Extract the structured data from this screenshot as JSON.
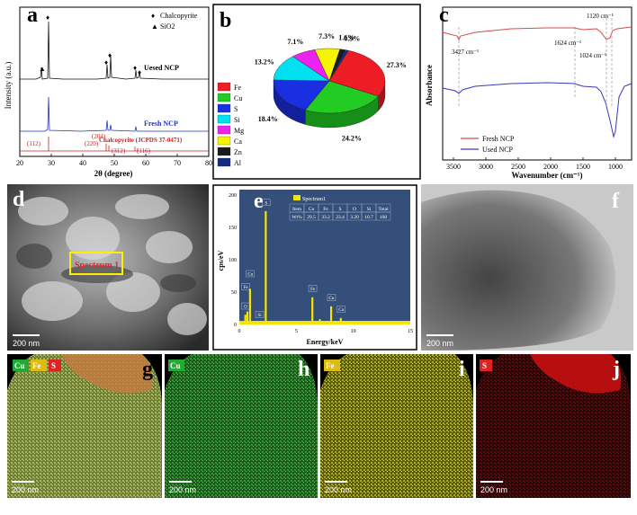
{
  "panels": {
    "a": {
      "label": "a",
      "ylabel": "Intensity (a.u.)",
      "xlabel": "2θ (degree)",
      "xticks": [
        "20",
        "30",
        "40",
        "50",
        "60",
        "70",
        "80"
      ],
      "legend": [
        {
          "marker": "♦",
          "text": "Chalcopyrite"
        },
        {
          "marker": "▲",
          "text": "SiO2"
        }
      ],
      "used_label": "Uesed NCP",
      "fresh_label": "Fresh NCP",
      "ref_label": "Chalcopyrite (JCPDS 37-0471)",
      "peaks": [
        "(112)",
        "(220)",
        "(204)",
        "(312)",
        "(116)"
      ]
    },
    "b": {
      "label": "b",
      "legend": [
        "Fe",
        "Cu",
        "S",
        "Si",
        "Mg",
        "Ca",
        "Zn",
        "Al"
      ],
      "colors": [
        "#ee1c25",
        "#22cc22",
        "#1a2fe0",
        "#00e0f0",
        "#ee22ee",
        "#f5f500",
        "#1a1a1a",
        "#152c80"
      ]
    },
    "c": {
      "label": "c",
      "ylabel": "Absorbance",
      "xlabel": "Wavenumber (cm⁻¹)",
      "xticks": [
        "3500",
        "3000",
        "2500",
        "2000",
        "1500",
        "1000"
      ],
      "ann": [
        "3427 cm⁻¹",
        "1624 cm⁻¹",
        "1120 cm⁻¹",
        "1024 cm⁻¹"
      ],
      "legend": [
        {
          "text": "Fresh NCP",
          "color": "#d94a4a"
        },
        {
          "text": "Used NCP",
          "color": "#3a3ab8"
        }
      ]
    },
    "d": {
      "label": "d",
      "box_label": "Spectrum 1",
      "scale": "200 nm"
    },
    "e": {
      "label": "e",
      "ylabel": "cps/eV",
      "xlabel": "Energy/keV",
      "yticks": [
        "0",
        "50",
        "100",
        "150",
        "200"
      ],
      "xticks": [
        "0",
        "5",
        "10",
        "15"
      ],
      "legend": "Spectrum1",
      "table_header": [
        "Item",
        "Cu",
        "Fe",
        "S",
        "O",
        "Si",
        "Total"
      ],
      "table_row": [
        "Wt%",
        "29.5",
        "33.2",
        "23.4",
        "3.20",
        "10.7",
        "100"
      ],
      "peak_labels": [
        "Fe",
        "Cu",
        "S",
        "O",
        "Si",
        "Fe",
        "Cu",
        "Cu"
      ]
    },
    "f": {
      "label": "f",
      "scale": "200 nm"
    },
    "g": {
      "label": "g",
      "tags": [
        "Cu",
        "Fe",
        "S"
      ],
      "scale": "200 nm"
    },
    "h": {
      "label": "h",
      "tag": "Cu",
      "scale": "200 nm"
    },
    "i": {
      "label": "i",
      "tag": "Fe",
      "scale": "200 nm"
    },
    "j": {
      "label": "j",
      "tag": "S",
      "scale": "200 nm"
    }
  },
  "chart_data": [
    {
      "panel": "a",
      "type": "line",
      "title": "",
      "xlabel": "2θ (degree)",
      "ylabel": "Intensity (a.u.)",
      "xlim": [
        20,
        80
      ],
      "series": [
        {
          "name": "Uesed NCP",
          "x": [
            26.6,
            29.4,
            48.9,
            49.6,
            58.2,
            59.3
          ],
          "y": [
            0.12,
            1.0,
            0.15,
            0.25,
            0.12,
            0.1
          ]
        },
        {
          "name": "Fresh NCP",
          "x": [
            29.4,
            48.9,
            49.6,
            58.2
          ],
          "y": [
            0.55,
            0.12,
            0.08,
            0.06
          ]
        },
        {
          "name": "Chalcopyrite (JCPDS 37-0471)",
          "x": [
            29.4,
            48.9,
            49.6,
            58.2,
            59.3
          ],
          "y": [
            1,
            0.3,
            0.2,
            0.15,
            0.1
          ]
        }
      ]
    },
    {
      "panel": "b",
      "type": "pie",
      "title": "",
      "categories": [
        "Fe",
        "Cu",
        "S",
        "Si",
        "Mg",
        "Ca",
        "Zn",
        "Al"
      ],
      "values": [
        27.3,
        24.2,
        18.4,
        13.2,
        7.1,
        7.3,
        1.6,
        0.9
      ],
      "labels": [
        "27.3%",
        "24.2%",
        "18.4%",
        "13.2%",
        "7.1%",
        "7.3%",
        "1.6%",
        "0.9%"
      ]
    },
    {
      "panel": "c",
      "type": "line",
      "title": "",
      "xlabel": "Wavenumber (cm⁻¹)",
      "ylabel": "Absorbance",
      "xlim": [
        3700,
        800
      ],
      "series": [
        {
          "name": "Fresh NCP",
          "x": [
            3700,
            3427,
            3300,
            2500,
            1624,
            1200,
            1120,
            1024,
            900
          ],
          "y": [
            0.92,
            0.86,
            0.9,
            0.92,
            0.9,
            0.87,
            0.8,
            0.82,
            0.92
          ]
        },
        {
          "name": "Used NCP",
          "x": [
            3700,
            3427,
            3300,
            2500,
            1624,
            1200,
            1120,
            1024,
            900
          ],
          "y": [
            0.45,
            0.38,
            0.44,
            0.45,
            0.43,
            0.3,
            0.12,
            0.02,
            0.4
          ]
        }
      ]
    },
    {
      "panel": "e",
      "type": "bar",
      "title": "",
      "xlabel": "Energy/keV",
      "ylabel": "cps/eV",
      "xlim": [
        0,
        15
      ],
      "ylim": [
        0,
        200
      ],
      "x": [
        0.52,
        0.7,
        0.93,
        1.74,
        2.31,
        6.4,
        7.06,
        8.05,
        8.9
      ],
      "values": [
        15,
        20,
        55,
        5,
        175,
        42,
        8,
        28,
        10
      ]
    }
  ]
}
